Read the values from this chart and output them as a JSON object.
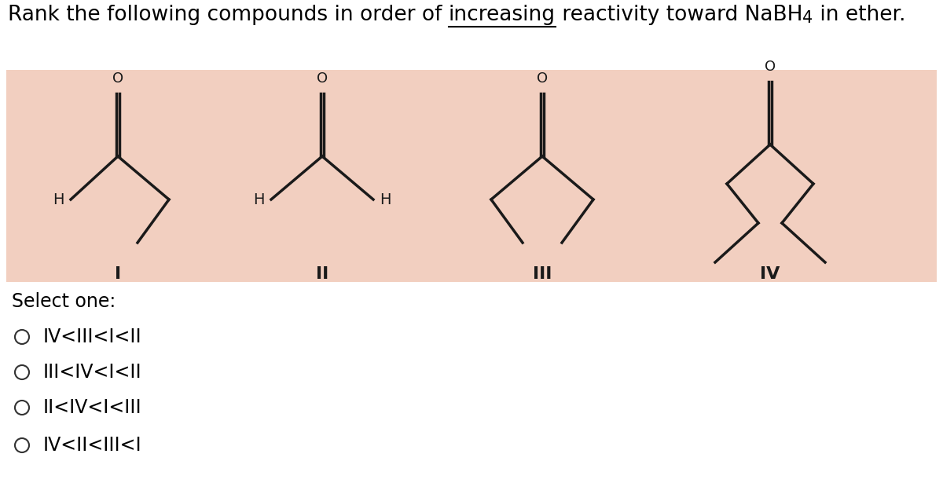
{
  "bg_color": "#ffffff",
  "compound_box_color": "#f2cfc0",
  "select_one_text": "Select one:",
  "options": [
    "IV<III<I<II",
    "III<IV<I<II",
    "II<IV<I<III",
    "IV<II<III<I"
  ],
  "font_size_title": 19,
  "font_size_options": 17,
  "font_size_select": 17,
  "font_size_label": 16,
  "font_size_H": 14,
  "font_size_O": 13
}
